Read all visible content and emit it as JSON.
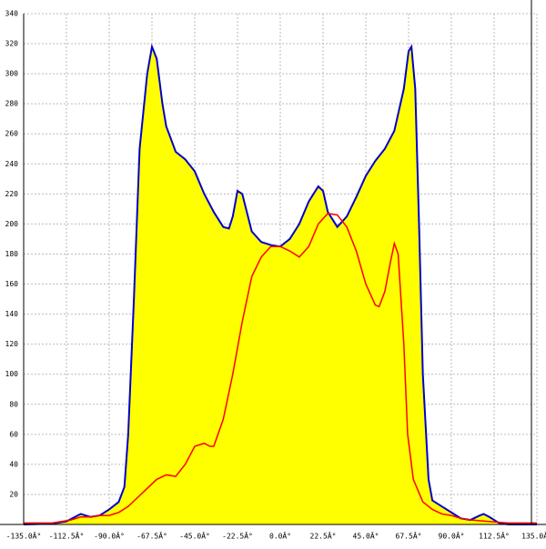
{
  "chart_data": {
    "type": "area-line",
    "series": [
      {
        "type": "area",
        "color": "#0000cc",
        "fill": "#ffff00",
        "x": [
          -135,
          -120,
          -112.5,
          -105,
          -100,
          -95,
          -90,
          -85,
          -82,
          -80,
          -77,
          -74,
          -70,
          -67.5,
          -65,
          -62,
          -60,
          -55,
          -50,
          -45,
          -40,
          -35,
          -30,
          -27,
          -25,
          -22.5,
          -20,
          -17,
          -15,
          -10,
          -5,
          0,
          5,
          10,
          15,
          20,
          22.5,
          25,
          30,
          35,
          40,
          45,
          50,
          55,
          60,
          65,
          67.5,
          69,
          71,
          73,
          75,
          78,
          80,
          85,
          90,
          95,
          100,
          105,
          107,
          110,
          115,
          120,
          135
        ],
        "values": [
          0,
          0.5,
          2,
          7,
          5,
          6,
          10,
          15,
          25,
          60,
          150,
          250,
          300,
          318,
          310,
          280,
          265,
          248,
          243,
          235,
          220,
          208,
          198,
          197,
          205,
          222,
          220,
          205,
          195,
          188,
          186,
          185,
          190,
          200,
          215,
          225,
          222,
          208,
          198,
          205,
          218,
          232,
          242,
          250,
          262,
          290,
          315,
          318,
          290,
          200,
          100,
          30,
          16,
          12,
          8,
          4,
          3,
          6,
          7,
          5,
          1,
          0,
          0
        ]
      },
      {
        "type": "line",
        "color": "#ff0000",
        "x": [
          -135,
          -120,
          -110,
          -105,
          -100,
          -95,
          -90,
          -85,
          -80,
          -75,
          -70,
          -65,
          -60,
          -55,
          -50,
          -45,
          -40,
          -37,
          -35,
          -30,
          -25,
          -20,
          -15,
          -10,
          -5,
          0,
          5,
          10,
          15,
          20,
          25,
          30,
          35,
          40,
          45,
          50,
          52,
          55,
          58,
          60,
          62,
          65,
          67,
          70,
          75,
          80,
          85,
          90,
          95,
          100,
          110,
          120,
          135
        ],
        "values": [
          1,
          1,
          3,
          5,
          5,
          6,
          6,
          8,
          12,
          18,
          24,
          30,
          33,
          32,
          40,
          52,
          54,
          52,
          52,
          70,
          100,
          135,
          165,
          178,
          185,
          185,
          182,
          178,
          185,
          200,
          207,
          206,
          198,
          182,
          160,
          146,
          145,
          155,
          175,
          187,
          180,
          120,
          60,
          30,
          15,
          10,
          7,
          6,
          4,
          3,
          2,
          1,
          1
        ]
      }
    ],
    "xlim": [
      -135,
      135
    ],
    "xticks": [
      {
        "value": -135,
        "label": "-135.0Â°"
      },
      {
        "value": -112.5,
        "label": "-112.5Â°"
      },
      {
        "value": -90,
        "label": "-90.0Â°"
      },
      {
        "value": -67.5,
        "label": "-67.5Â°"
      },
      {
        "value": -45,
        "label": "-45.0Â°"
      },
      {
        "value": -22.5,
        "label": "-22.5Â°"
      },
      {
        "value": 0,
        "label": "0.0Â°"
      },
      {
        "value": 22.5,
        "label": "22.5Â°"
      },
      {
        "value": 45,
        "label": "45.0Â°"
      },
      {
        "value": 67.5,
        "label": "67.5Â°"
      },
      {
        "value": 90,
        "label": "90.0Â°"
      },
      {
        "value": 112.5,
        "label": "112.5Â°"
      },
      {
        "value": 135,
        "label": "135.0Â°"
      }
    ],
    "ylim": [
      0,
      340
    ],
    "yticks": [
      20,
      40,
      60,
      80,
      100,
      120,
      140,
      160,
      180,
      200,
      220,
      240,
      260,
      280,
      300,
      320,
      340
    ],
    "grid": true
  }
}
